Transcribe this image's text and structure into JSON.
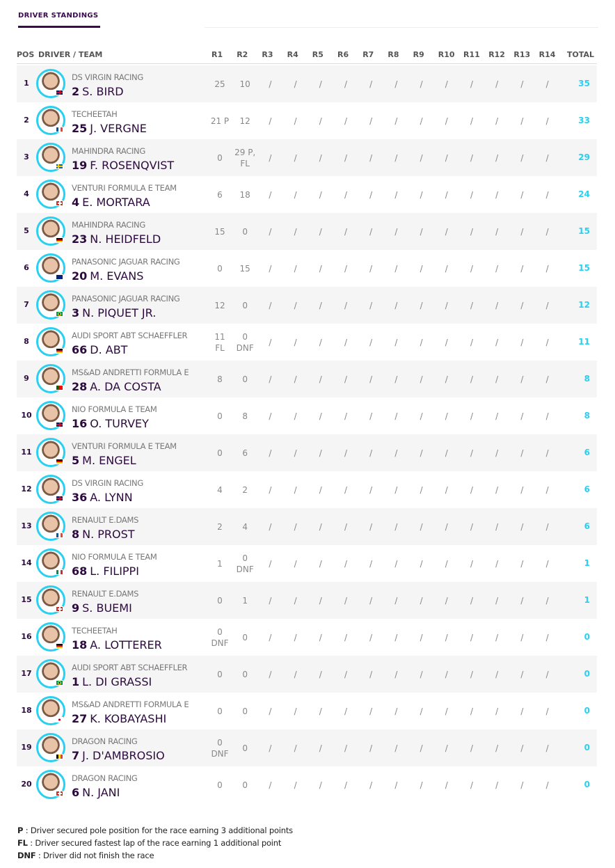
{
  "tab": {
    "label": "DRIVER STANDINGS"
  },
  "header": {
    "pos": "POS",
    "driver_team": "DRIVER / TEAM",
    "rounds": [
      "R1",
      "R2",
      "R3",
      "R4",
      "R5",
      "R6",
      "R7",
      "R8",
      "R9",
      "R10",
      "R11",
      "R12",
      "R13",
      "R14"
    ],
    "total": "TOTAL"
  },
  "colors": {
    "accent": "#2ad0f0",
    "primary": "#2d0a3e"
  },
  "drivers": [
    {
      "pos": "1",
      "team": "DS VIRGIN RACING",
      "number": "2",
      "name": "S. BIRD",
      "flag": "GB",
      "r": [
        "25",
        "10",
        "/",
        "/",
        "/",
        "/",
        "/",
        "/",
        "/",
        "/",
        "/",
        "/",
        "/",
        "/"
      ],
      "total": "35"
    },
    {
      "pos": "2",
      "team": "TECHEETAH",
      "number": "25",
      "name": "J. VERGNE",
      "flag": "FR",
      "r": [
        "21 P",
        "12",
        "/",
        "/",
        "/",
        "/",
        "/",
        "/",
        "/",
        "/",
        "/",
        "/",
        "/",
        "/"
      ],
      "total": "33"
    },
    {
      "pos": "3",
      "team": "MAHINDRA RACING",
      "number": "19",
      "name": "F. ROSENQVIST",
      "flag": "SE",
      "r": [
        "0",
        "29 P,\nFL",
        "/",
        "/",
        "/",
        "/",
        "/",
        "/",
        "/",
        "/",
        "/",
        "/",
        "/",
        "/"
      ],
      "total": "29"
    },
    {
      "pos": "4",
      "team": "VENTURI FORMULA E TEAM",
      "number": "4",
      "name": "E. MORTARA",
      "flag": "CH",
      "r": [
        "6",
        "18",
        "/",
        "/",
        "/",
        "/",
        "/",
        "/",
        "/",
        "/",
        "/",
        "/",
        "/",
        "/"
      ],
      "total": "24"
    },
    {
      "pos": "5",
      "team": "MAHINDRA RACING",
      "number": "23",
      "name": "N. HEIDFELD",
      "flag": "DE",
      "r": [
        "15",
        "0",
        "/",
        "/",
        "/",
        "/",
        "/",
        "/",
        "/",
        "/",
        "/",
        "/",
        "/",
        "/"
      ],
      "total": "15"
    },
    {
      "pos": "6",
      "team": "PANASONIC JAGUAR RACING",
      "number": "20",
      "name": "M. EVANS",
      "flag": "NZ",
      "r": [
        "0",
        "15",
        "/",
        "/",
        "/",
        "/",
        "/",
        "/",
        "/",
        "/",
        "/",
        "/",
        "/",
        "/"
      ],
      "total": "15"
    },
    {
      "pos": "7",
      "team": "PANASONIC JAGUAR RACING",
      "number": "3",
      "name": "N. PIQUET JR.",
      "flag": "BR",
      "r": [
        "12",
        "0",
        "/",
        "/",
        "/",
        "/",
        "/",
        "/",
        "/",
        "/",
        "/",
        "/",
        "/",
        "/"
      ],
      "total": "12"
    },
    {
      "pos": "8",
      "team": "AUDI SPORT ABT SCHAEFFLER",
      "number": "66",
      "name": "D. ABT",
      "flag": "DE",
      "r": [
        "11\nFL",
        "0\nDNF",
        "/",
        "/",
        "/",
        "/",
        "/",
        "/",
        "/",
        "/",
        "/",
        "/",
        "/",
        "/"
      ],
      "total": "11"
    },
    {
      "pos": "9",
      "team": "MS&AD ANDRETTI FORMULA E",
      "number": "28",
      "name": "A. DA COSTA",
      "flag": "PT",
      "r": [
        "8",
        "0",
        "/",
        "/",
        "/",
        "/",
        "/",
        "/",
        "/",
        "/",
        "/",
        "/",
        "/",
        "/"
      ],
      "total": "8"
    },
    {
      "pos": "10",
      "team": "NIO FORMULA E TEAM",
      "number": "16",
      "name": "O. TURVEY",
      "flag": "GB",
      "r": [
        "0",
        "8",
        "/",
        "/",
        "/",
        "/",
        "/",
        "/",
        "/",
        "/",
        "/",
        "/",
        "/",
        "/"
      ],
      "total": "8"
    },
    {
      "pos": "11",
      "team": "VENTURI FORMULA E TEAM",
      "number": "5",
      "name": "M. ENGEL",
      "flag": "DE",
      "r": [
        "0",
        "6",
        "/",
        "/",
        "/",
        "/",
        "/",
        "/",
        "/",
        "/",
        "/",
        "/",
        "/",
        "/"
      ],
      "total": "6"
    },
    {
      "pos": "12",
      "team": "DS VIRGIN RACING",
      "number": "36",
      "name": "A. LYNN",
      "flag": "GB",
      "r": [
        "4",
        "2",
        "/",
        "/",
        "/",
        "/",
        "/",
        "/",
        "/",
        "/",
        "/",
        "/",
        "/",
        "/"
      ],
      "total": "6"
    },
    {
      "pos": "13",
      "team": "RENAULT E.DAMS",
      "number": "8",
      "name": "N. PROST",
      "flag": "FR",
      "r": [
        "2",
        "4",
        "/",
        "/",
        "/",
        "/",
        "/",
        "/",
        "/",
        "/",
        "/",
        "/",
        "/",
        "/"
      ],
      "total": "6"
    },
    {
      "pos": "14",
      "team": "NIO FORMULA E TEAM",
      "number": "68",
      "name": "L. FILIPPI",
      "flag": "IT",
      "r": [
        "1",
        "0\nDNF",
        "/",
        "/",
        "/",
        "/",
        "/",
        "/",
        "/",
        "/",
        "/",
        "/",
        "/",
        "/"
      ],
      "total": "1"
    },
    {
      "pos": "15",
      "team": "RENAULT E.DAMS",
      "number": "9",
      "name": "S. BUEMI",
      "flag": "CH",
      "r": [
        "0",
        "1",
        "/",
        "/",
        "/",
        "/",
        "/",
        "/",
        "/",
        "/",
        "/",
        "/",
        "/",
        "/"
      ],
      "total": "1"
    },
    {
      "pos": "16",
      "team": "TECHEETAH",
      "number": "18",
      "name": "A. LOTTERER",
      "flag": "DE",
      "r": [
        "0\nDNF",
        "0",
        "/",
        "/",
        "/",
        "/",
        "/",
        "/",
        "/",
        "/",
        "/",
        "/",
        "/",
        "/"
      ],
      "total": "0"
    },
    {
      "pos": "17",
      "team": "AUDI SPORT ABT SCHAEFFLER",
      "number": "1",
      "name": "L. DI GRASSI",
      "flag": "BR",
      "r": [
        "0",
        "0",
        "/",
        "/",
        "/",
        "/",
        "/",
        "/",
        "/",
        "/",
        "/",
        "/",
        "/",
        "/"
      ],
      "total": "0"
    },
    {
      "pos": "18",
      "team": "MS&AD ANDRETTI FORMULA E",
      "number": "27",
      "name": "K. KOBAYASHI",
      "flag": "JP",
      "r": [
        "0",
        "0",
        "/",
        "/",
        "/",
        "/",
        "/",
        "/",
        "/",
        "/",
        "/",
        "/",
        "/",
        "/"
      ],
      "total": "0"
    },
    {
      "pos": "19",
      "team": "DRAGON RACING",
      "number": "7",
      "name": "J. D'AMBROSIO",
      "flag": "BE",
      "r": [
        "0\nDNF",
        "0",
        "/",
        "/",
        "/",
        "/",
        "/",
        "/",
        "/",
        "/",
        "/",
        "/",
        "/",
        "/"
      ],
      "total": "0"
    },
    {
      "pos": "20",
      "team": "DRAGON RACING",
      "number": "6",
      "name": "N. JANI",
      "flag": "CH",
      "r": [
        "0",
        "0",
        "/",
        "/",
        "/",
        "/",
        "/",
        "/",
        "/",
        "/",
        "/",
        "/",
        "/",
        "/"
      ],
      "total": "0"
    }
  ],
  "legend": [
    {
      "key": "P",
      "text": " : Driver secured pole position for the race earning 3 additional points"
    },
    {
      "key": "FL",
      "text": " : Driver secured fastest lap of the race earning 1 additional point"
    },
    {
      "key": "DNF",
      "text": " : Driver did not finish the race"
    }
  ]
}
